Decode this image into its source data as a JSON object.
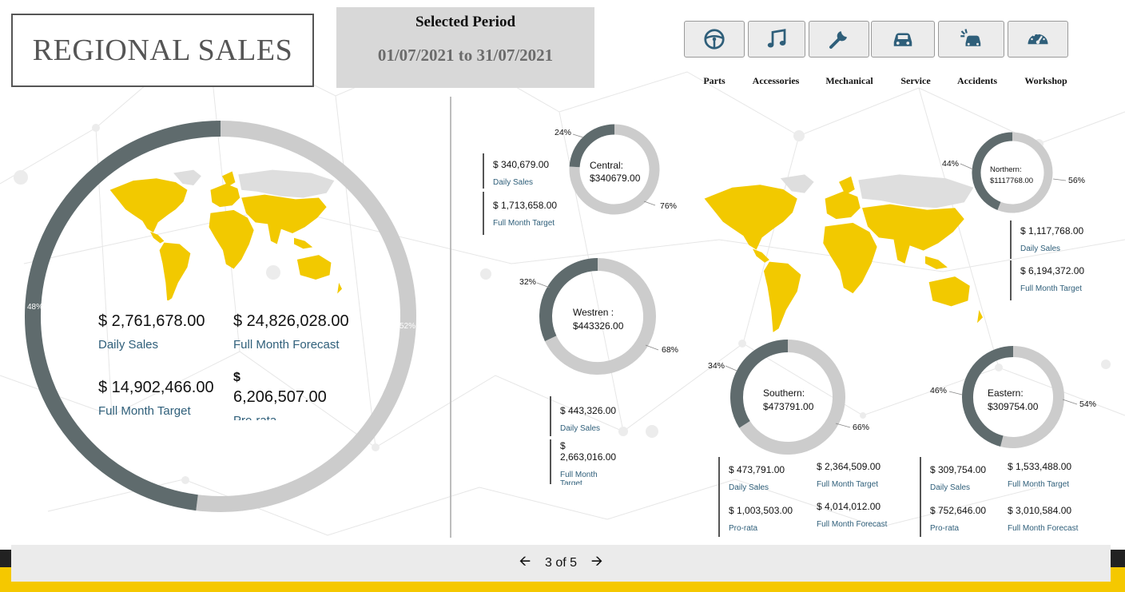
{
  "header": {
    "title": "REGIONAL SALES",
    "period_label": "Selected Period",
    "period_range": "01/07/2021 to 31/07/2021"
  },
  "categories": [
    {
      "label": "Parts",
      "icon": "steering-wheel-icon"
    },
    {
      "label": "Accessories",
      "icon": "music-note-icon"
    },
    {
      "label": "Mechanical",
      "icon": "wrench-icon"
    },
    {
      "label": "Service",
      "icon": "car-icon"
    },
    {
      "label": "Accidents",
      "icon": "car-crash-icon"
    },
    {
      "label": "Workshop",
      "icon": "speedometer-icon"
    }
  ],
  "colors": {
    "achieved": "#5f6b6d",
    "remaining": "#cccccc",
    "map": "#f2c900",
    "map_inactive": "#dedede",
    "label_blue": "#2f5f7a"
  },
  "overall": {
    "donut": {
      "achieved_pct_label": "48%",
      "remaining_pct_label": "52%",
      "achieved_fraction": 0.48
    },
    "daily_sales": {
      "value": "$ 2,761,678.00",
      "label": "Daily Sales"
    },
    "full_month_forecast": {
      "value": "$ 24,826,028.00",
      "label": "Full Month Forecast"
    },
    "full_month_target": {
      "value": "$ 14,902,466.00",
      "label": "Full Month Target"
    },
    "pro_rata": {
      "value_sym": "$",
      "value": "6,206,507.00",
      "label": "Pro-rata"
    }
  },
  "regions": {
    "central": {
      "name": "Central:",
      "amount": "$340679.00",
      "achieved_pct": "24%",
      "remaining_pct": "76%",
      "achieved_fraction": 0.24,
      "daily_sales": "$ 340,679.00",
      "daily_sales_label": "Daily Sales",
      "target": "$ 1,713,658.00",
      "target_label": "Full Month Target"
    },
    "western": {
      "name": "Westren :",
      "amount": "$443326.00",
      "achieved_pct": "32%",
      "remaining_pct": "68%",
      "achieved_fraction": 0.32,
      "daily_sales": "$ 443,326.00",
      "daily_sales_label": "Daily Sales",
      "target_sym": "$",
      "target": "2,663,016.00",
      "target_label": "Full Month Target"
    },
    "northern": {
      "name": "Northern:",
      "amount": "$1117768.00",
      "achieved_pct": "44%",
      "remaining_pct": "56%",
      "achieved_fraction": 0.44,
      "daily_sales": "$ 1,117,768.00",
      "daily_sales_label": "Daily Sales",
      "target": "$ 6,194,372.00",
      "target_label": "Full Month Target"
    },
    "southern": {
      "name": "Southern:",
      "amount": "$473791.00",
      "achieved_pct": "34%",
      "remaining_pct": "66%",
      "achieved_fraction": 0.34,
      "daily_sales": "$ 473,791.00",
      "daily_sales_label": "Daily Sales",
      "target": "$ 2,364,509.00",
      "target_label": "Full Month Target",
      "pro_rata": "$ 1,003,503.00",
      "pro_rata_label": "Pro-rata",
      "forecast": "$ 4,014,012.00",
      "forecast_label": "Full Month Forecast"
    },
    "eastern": {
      "name": "Eastern:",
      "amount": "$309754.00",
      "achieved_pct": "46%",
      "remaining_pct": "54%",
      "achieved_fraction": 0.46,
      "daily_sales": "$ 309,754.00",
      "daily_sales_label": "Daily Sales",
      "target": "$ 1,533,488.00",
      "target_label": "Full Month Target",
      "pro_rata": "$ 752,646.00",
      "pro_rata_label": "Pro-rata",
      "forecast": "$ 3,010,584.00",
      "forecast_label": "Full Month Forecast"
    }
  },
  "pager": {
    "text": "3 of 5",
    "prev_icon": "arrow-left-icon",
    "next_icon": "arrow-right-icon"
  }
}
